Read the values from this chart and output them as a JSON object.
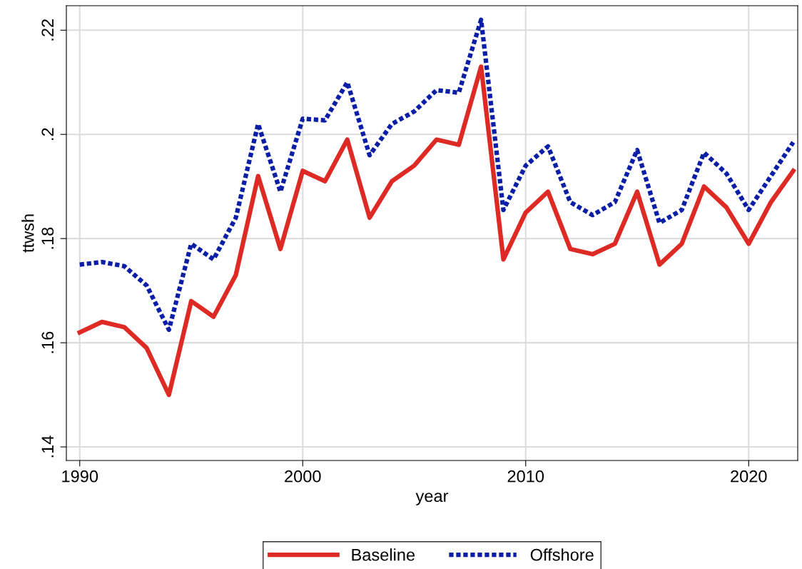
{
  "chart_data": {
    "type": "line",
    "xlabel": "year",
    "ylabel": "ttwsh",
    "x": [
      1990,
      1991,
      1992,
      1993,
      1994,
      1995,
      1996,
      1997,
      1998,
      1999,
      2000,
      2001,
      2002,
      2003,
      2004,
      2005,
      2006,
      2007,
      2008,
      2009,
      2010,
      2011,
      2012,
      2013,
      2014,
      2015,
      2016,
      2017,
      2018,
      2019,
      2020,
      2021,
      2022
    ],
    "series": [
      {
        "name": "Baseline",
        "color": "#dd2a24",
        "line_style": "solid",
        "values": [
          0.162,
          0.164,
          0.163,
          0.159,
          0.15,
          0.168,
          0.165,
          0.173,
          0.192,
          0.178,
          0.193,
          0.191,
          0.199,
          0.184,
          0.191,
          0.194,
          0.199,
          0.198,
          0.213,
          0.176,
          0.185,
          0.189,
          0.178,
          0.177,
          0.179,
          0.189,
          0.175,
          0.179,
          0.19,
          0.186,
          0.179,
          0.187,
          0.193
        ]
      },
      {
        "name": "Offshore",
        "color": "#0a1fa6",
        "line_style": "dotted",
        "values": [
          0.175,
          0.1755,
          0.1747,
          0.171,
          0.1625,
          0.179,
          0.176,
          0.184,
          0.202,
          0.189,
          0.203,
          0.2027,
          0.21,
          0.196,
          0.202,
          0.2044,
          0.2085,
          0.208,
          0.222,
          0.1855,
          0.194,
          0.1977,
          0.187,
          0.1845,
          0.187,
          0.197,
          0.183,
          0.1855,
          0.1965,
          0.1925,
          0.1855,
          0.192,
          0.1985
        ]
      }
    ],
    "xlim": [
      1989.4,
      2022.2
    ],
    "xticks": [
      1990,
      2000,
      2010,
      2020
    ],
    "ylim": [
      0.1374,
      0.2247
    ],
    "yticks": [
      {
        "value": 0.14,
        "label": ".14"
      },
      {
        "value": 0.16,
        "label": ".16"
      },
      {
        "value": 0.18,
        "label": ".18"
      },
      {
        "value": 0.2,
        "label": ".2"
      },
      {
        "value": 0.22,
        "label": ".22"
      }
    ],
    "grid": true,
    "legend": "bottom"
  }
}
